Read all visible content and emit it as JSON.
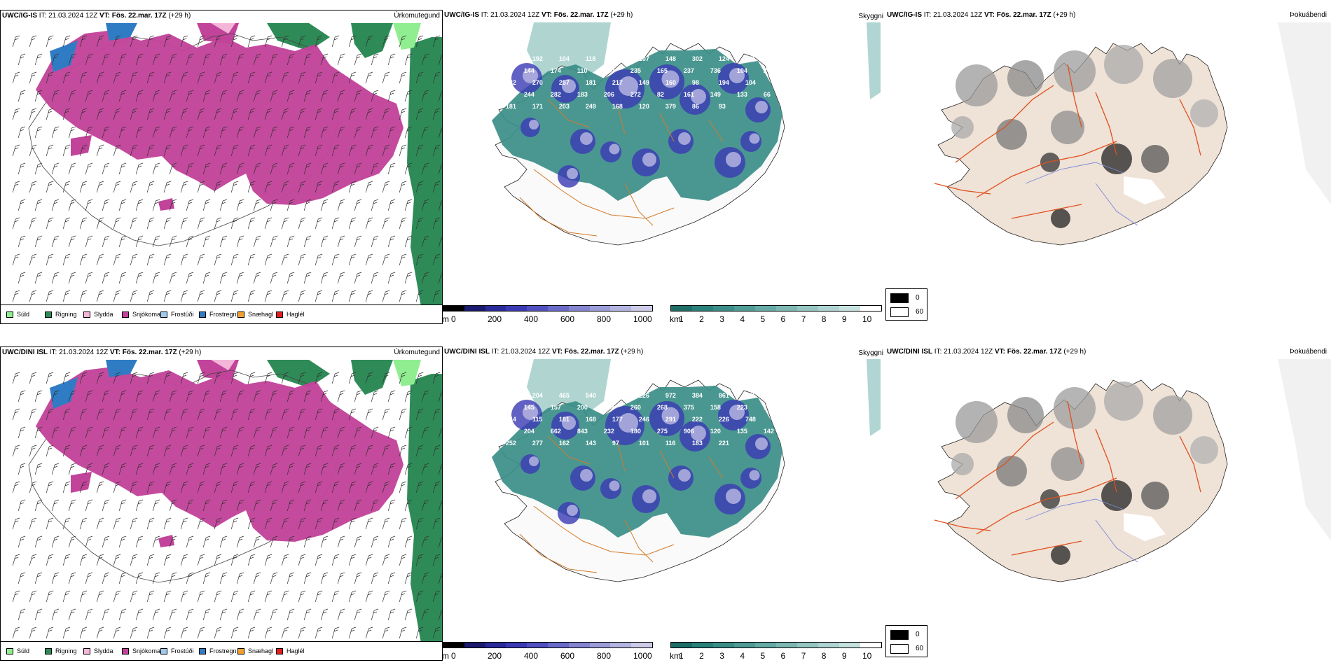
{
  "rows": [
    {
      "model": "UWC/IG-IS",
      "it": "IT: 21.03.2024 12Z",
      "vt": "VT: Fös. 22.mar. 17Z",
      "lead": "(+29 h)",
      "precip_label": "Úrkomutegund",
      "cloud_label": "Skyggni",
      "fog_label": "Þokuábendi",
      "cloud_numbers": [
        "149",
        "192",
        "104",
        "118",
        "227",
        "107",
        "148",
        "302",
        "124",
        "976",
        "262",
        "215",
        "144",
        "174",
        "110",
        "120",
        "235",
        "165",
        "237",
        "736",
        "104",
        "208",
        "182",
        "270",
        "257",
        "181",
        "217",
        "149",
        "160",
        "98",
        "194",
        "104",
        "130",
        "157",
        "244",
        "282",
        "183",
        "206",
        "272",
        "82",
        "161",
        "149",
        "133",
        "66",
        "181",
        "171",
        "203",
        "249",
        "168",
        "120",
        "379",
        "86",
        "93"
      ]
    },
    {
      "model": "UWC/DINI ISL",
      "it": "IT: 21.03.2024 12Z",
      "vt": "VT: Fös. 22.mar. 17Z",
      "lead": "(+29 h)",
      "precip_label": "Úrkomutegund",
      "cloud_label": "Skyggni",
      "fog_label": "Þokuábendi",
      "cloud_numbers": [
        "245",
        "204",
        "465",
        "540",
        "103",
        "226",
        "972",
        "384",
        "861",
        "186",
        "247",
        "942",
        "145",
        "157",
        "200",
        "379",
        "260",
        "268",
        "375",
        "158",
        "223",
        "104",
        "144",
        "115",
        "181",
        "168",
        "177",
        "246",
        "291",
        "222",
        "226",
        "748",
        "56",
        "199",
        "204",
        "662",
        "843",
        "232",
        "180",
        "275",
        "906",
        "120",
        "135",
        "142",
        "252",
        "277",
        "162",
        "143",
        "97",
        "101",
        "116",
        "183",
        "221"
      ]
    }
  ],
  "precip_legend": [
    {
      "label": "Súld",
      "color": "#90ee90"
    },
    {
      "label": "Rigning",
      "color": "#2e8b57"
    },
    {
      "label": "Slydda",
      "color": "#f4b6d8"
    },
    {
      "label": "Snjókoma",
      "color": "#c2449a"
    },
    {
      "label": "Frostúði",
      "color": "#9ecaf0"
    },
    {
      "label": "Frostregn",
      "color": "#2f7cc4"
    },
    {
      "label": "Snæhagl",
      "color": "#f0a030"
    },
    {
      "label": "Haglél",
      "color": "#e81c1c"
    }
  ],
  "height_scale": {
    "unit": "m",
    "ticks": [
      "0",
      "200",
      "400",
      "600",
      "800",
      "1000"
    ],
    "colors": [
      "#000000",
      "#1a1a6e",
      "#2a2a9a",
      "#3a3ab4",
      "#5050c0",
      "#6a6ac8",
      "#8484d0",
      "#9c9cd8",
      "#b4b4e0",
      "#cccce8"
    ]
  },
  "vis_scale": {
    "unit": "km",
    "ticks": [
      "1",
      "2",
      "3",
      "4",
      "5",
      "6",
      "7",
      "8",
      "9",
      "10"
    ],
    "colors": [
      "#1e6e68",
      "#2a807a",
      "#3b8e88",
      "#4f9c96",
      "#65aaa5",
      "#7db8b3",
      "#95c6c2",
      "#aed4d1",
      "#c6e2df",
      "#ffffff"
    ]
  },
  "fog_legend": [
    {
      "label": "0",
      "color": "#000000"
    },
    {
      "label": "60",
      "color": "#ffffff"
    }
  ]
}
